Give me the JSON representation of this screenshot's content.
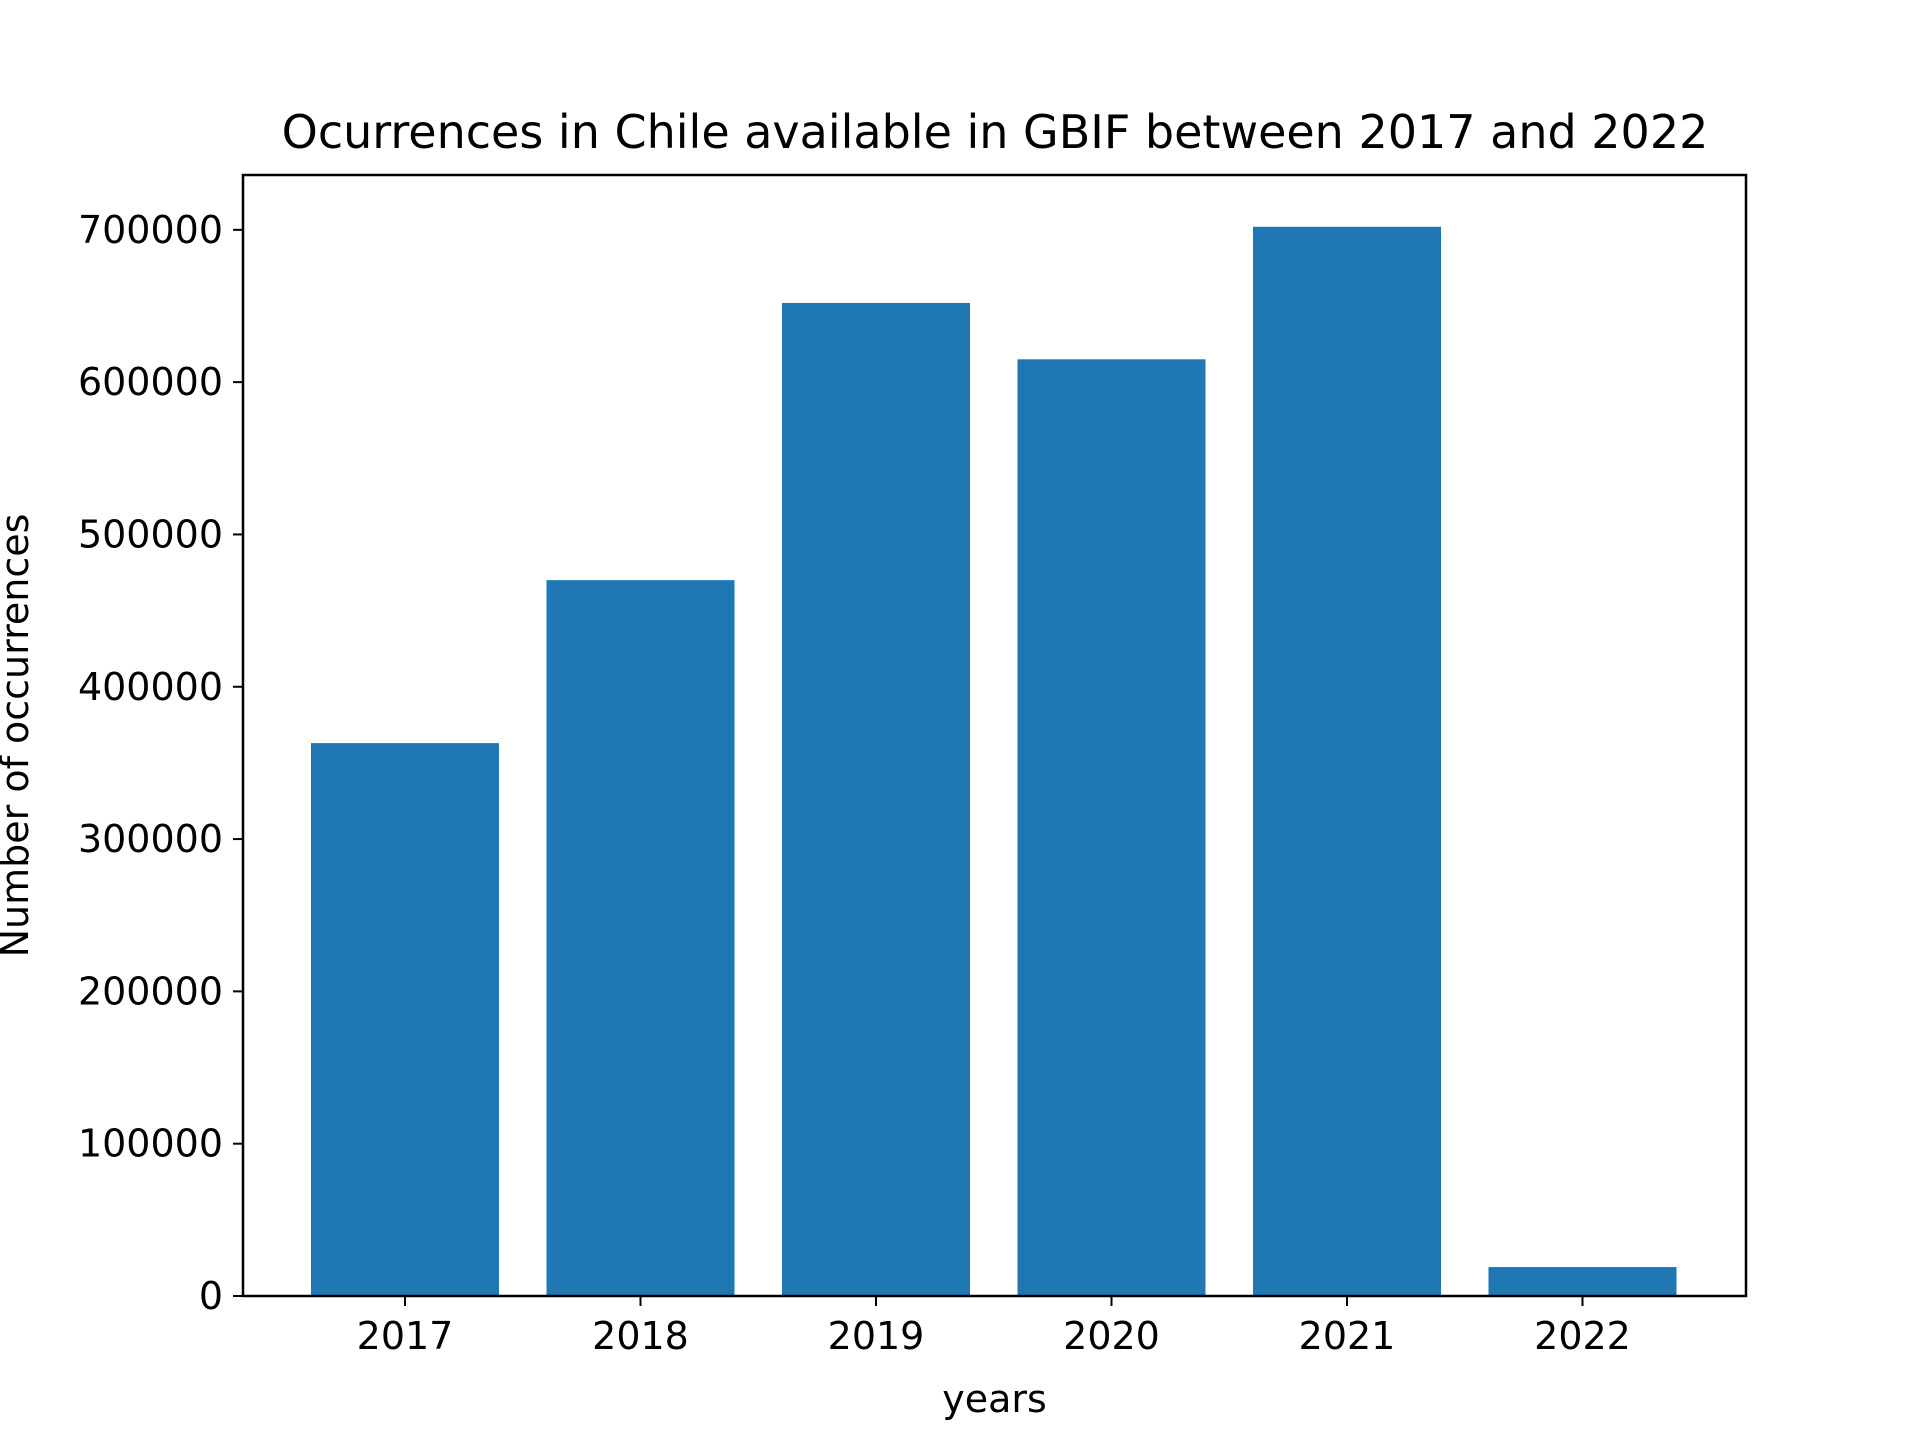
{
  "chart_data": {
    "type": "bar",
    "title": "Ocurrences in Chile available in GBIF between 2017 and 2022",
    "xlabel": "years",
    "ylabel": "Number of occurrences",
    "categories": [
      "2017",
      "2018",
      "2019",
      "2020",
      "2021",
      "2022"
    ],
    "values": [
      363000,
      470000,
      652000,
      615000,
      702000,
      19000
    ],
    "ylim": [
      0,
      736000
    ],
    "yticks": [
      0,
      100000,
      200000,
      300000,
      400000,
      500000,
      600000,
      700000
    ],
    "ytick_labels": [
      "0",
      "100000",
      "200000",
      "300000",
      "400000",
      "500000",
      "600000",
      "700000"
    ],
    "bar_color": "#1f77b4",
    "grid": false,
    "legend": "none"
  }
}
